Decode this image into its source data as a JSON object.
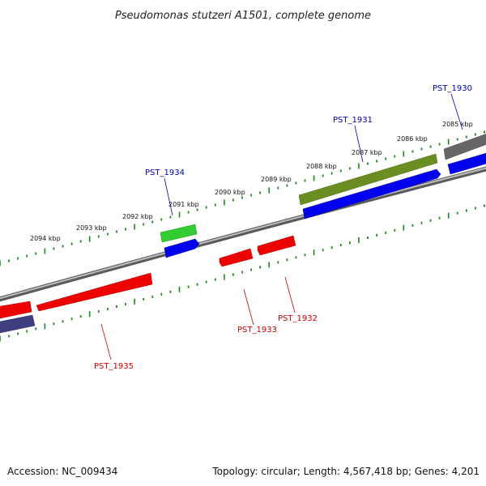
{
  "title": "Pseudomonas stutzeri A1501, complete genome",
  "footer": {
    "accession": "Accession: NC_009434",
    "stats": "Topology: circular; Length: 4,567,418 bp; Genes: 4,201"
  },
  "ruler_labels": [
    "2085 kbp",
    "2086 kbp",
    "2087 kbp",
    "2088 kbp",
    "2089 kbp",
    "2090 kbp",
    "2091 kbp",
    "2092 kbp",
    "2093 kbp",
    "2094 kbp"
  ],
  "genes_forward": [
    "PST_1930",
    "PST_1931",
    "PST_1934"
  ],
  "genes_reverse": [
    "PST_1932",
    "PST_1933",
    "PST_1935"
  ],
  "colors": {
    "forward_label": "#0000aa",
    "reverse_label": "#cc0000",
    "blue_feature": "#0000ee",
    "red_feature": "#ee0000",
    "olive_feature": "#6b8e23",
    "green_feature": "#33cc33",
    "gray_feature": "#666666",
    "slate_feature": "#404080",
    "tick": "#1a8a1a",
    "backbone": "#8a8a8a"
  }
}
